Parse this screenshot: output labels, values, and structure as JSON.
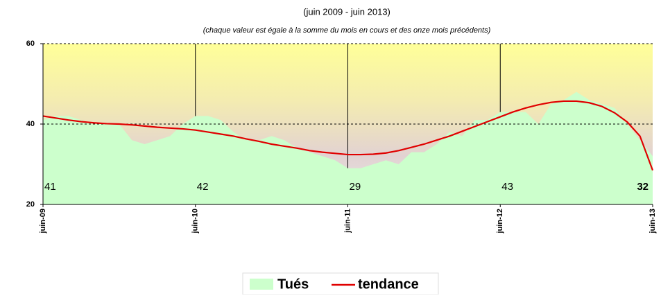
{
  "chart_data": {
    "type": "area",
    "title": "(juin 2009 - juin 2013)",
    "subtitle": "(chaque valeur est égale à la somme du mois en cours et des onze mois précédents)",
    "categories": [
      "juin-09",
      null,
      null,
      null,
      null,
      null,
      null,
      null,
      null,
      null,
      null,
      null,
      "juin-10",
      null,
      null,
      null,
      null,
      null,
      null,
      null,
      null,
      null,
      null,
      null,
      "juin-11",
      null,
      null,
      null,
      null,
      null,
      null,
      null,
      null,
      null,
      null,
      null,
      "juin-12",
      null,
      null,
      null,
      null,
      null,
      null,
      null,
      null,
      null,
      null,
      null,
      "juin-13"
    ],
    "series": [
      {
        "name": "Tués",
        "color": "#ccffcc",
        "values": [
          41,
          42,
          42,
          41,
          40,
          40,
          40,
          36,
          35,
          36,
          37,
          40,
          42,
          42,
          41,
          38,
          36,
          36,
          37,
          36,
          34,
          33,
          32,
          31,
          29,
          29,
          30,
          31,
          30,
          33,
          33,
          35,
          38,
          37,
          41,
          41,
          43,
          43,
          43,
          40,
          45,
          46,
          48,
          46,
          45,
          44,
          40,
          36,
          32
        ],
        "value_labels": [
          "41",
          null,
          null,
          null,
          null,
          null,
          null,
          null,
          null,
          null,
          null,
          null,
          "42",
          null,
          null,
          null,
          null,
          null,
          null,
          null,
          null,
          null,
          null,
          null,
          "29",
          null,
          null,
          null,
          null,
          null,
          null,
          null,
          null,
          null,
          null,
          null,
          "43",
          null,
          null,
          null,
          null,
          null,
          null,
          null,
          null,
          null,
          null,
          null,
          "32"
        ]
      },
      {
        "name": "tendance",
        "color": "#e00000",
        "values": [
          42,
          41.5,
          41,
          40.6,
          40.3,
          40.1,
          40,
          39.8,
          39.5,
          39.2,
          39,
          38.8,
          38.5,
          38,
          37.5,
          37,
          36.3,
          35.7,
          35,
          34.5,
          34,
          33.4,
          33,
          32.7,
          32.4,
          32.4,
          32.5,
          32.8,
          33.4,
          34.2,
          35,
          36,
          37,
          38.2,
          39.4,
          40.6,
          41.8,
          43,
          44,
          44.8,
          45.4,
          45.7,
          45.7,
          45.3,
          44.4,
          42.8,
          40.5,
          37,
          28.5
        ]
      }
    ],
    "ylim": [
      20,
      60
    ],
    "yticks": [
      20,
      40,
      60
    ],
    "grid": true
  }
}
